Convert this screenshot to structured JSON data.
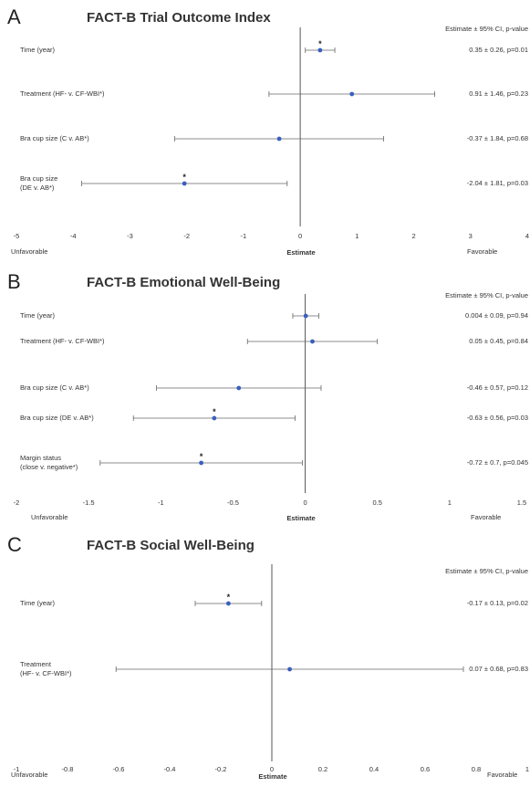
{
  "colors": {
    "line": "#555555",
    "ci": "#666666",
    "point": "#3a5fbf",
    "text": "#333333"
  },
  "chart_data": [
    {
      "type": "forest",
      "panel_letter": "A",
      "title": "FACT-B Trial Outcome Index",
      "column_header": "Estimate ± 95% CI, p-value",
      "xlabel": "Estimate",
      "left_label": "Unfavorable",
      "right_label": "Favorable",
      "xlim": [
        -5,
        4
      ],
      "ticks": [
        "-5",
        "-4",
        "-3",
        "-2",
        "-1",
        "0",
        "1",
        "2",
        "3",
        "4"
      ],
      "tick_values": [
        -5,
        -4,
        -3,
        -2,
        -1,
        0,
        1,
        2,
        3,
        4
      ],
      "rows": [
        {
          "label": [
            "Time (year)"
          ],
          "estimate": 0.35,
          "ci_low": 0.09,
          "ci_high": 0.61,
          "significant": true,
          "value_text": "0.35 ± 0.26, p=0.01"
        },
        {
          "label": [
            "Treatment (HF- v. CF-WBI*)"
          ],
          "estimate": 0.91,
          "ci_low": -0.55,
          "ci_high": 2.37,
          "significant": false,
          "value_text": "0.91 ± 1.46, p=0.23"
        },
        {
          "label": [
            "Bra cup size (C v. AB*)"
          ],
          "estimate": -0.37,
          "ci_low": -2.21,
          "ci_high": 1.47,
          "significant": false,
          "value_text": "-0.37 ± 1.84, p=0.68"
        },
        {
          "label": [
            "Bra cup size",
            "(DE v. AB*)"
          ],
          "estimate": -2.04,
          "ci_low": -3.85,
          "ci_high": -0.23,
          "significant": true,
          "value_text": "-2.04 ± 1.81, p=0.03"
        }
      ]
    },
    {
      "type": "forest",
      "panel_letter": "B",
      "title": "FACT-B Emotional Well-Being",
      "column_header": "Estimate ± 95% CI, p-value",
      "xlabel": "Estimate",
      "left_label": "Unfavorable",
      "right_label": "Favorable",
      "xlim": [
        -2,
        1.5
      ],
      "ticks": [
        "-2",
        "-1.5",
        "-1",
        "-0.5",
        "0",
        "0.5",
        "1",
        "1.5"
      ],
      "tick_values": [
        -2,
        -1.5,
        -1,
        -0.5,
        0,
        0.5,
        1,
        1.5
      ],
      "rows": [
        {
          "label": [
            "Time (year)"
          ],
          "estimate": 0.004,
          "ci_low": -0.086,
          "ci_high": 0.094,
          "significant": false,
          "value_text": "0.004 ± 0.09, p=0.94"
        },
        {
          "label": [
            "Treatment (HF- v. CF-WBI*)"
          ],
          "estimate": 0.05,
          "ci_low": -0.4,
          "ci_high": 0.5,
          "significant": false,
          "value_text": "0.05 ± 0.45, p=0.84"
        },
        {
          "label": [
            "Bra cup size (C v. AB*)"
          ],
          "estimate": -0.46,
          "ci_low": -1.03,
          "ci_high": 0.11,
          "significant": false,
          "value_text": "-0.46 ± 0.57, p=0.12"
        },
        {
          "label": [
            "Bra cup size (DE v. AB*)"
          ],
          "estimate": -0.63,
          "ci_low": -1.19,
          "ci_high": -0.07,
          "significant": true,
          "value_text": "-0.63 ± 0.56, p=0.03"
        },
        {
          "label": [
            "Margin status",
            "(close v. negative*)"
          ],
          "estimate": -0.72,
          "ci_low": -1.42,
          "ci_high": -0.02,
          "significant": true,
          "value_text": "-0.72 ± 0.7, p=0.045"
        }
      ]
    },
    {
      "type": "forest",
      "panel_letter": "C",
      "title": "FACT-B Social Well-Being",
      "column_header": "Estimate ± 95% CI, p-value",
      "xlabel": "Estimate",
      "left_label": "Unfavorable",
      "right_label": "Favorable",
      "xlim": [
        -1,
        1
      ],
      "ticks": [
        "-1",
        "-0.8",
        "-0.6",
        "-0.4",
        "-0.2",
        "0",
        "0.2",
        "0.4",
        "0.6",
        "0.8",
        "1"
      ],
      "tick_values": [
        -1,
        -0.8,
        -0.6,
        -0.4,
        -0.2,
        0,
        0.2,
        0.4,
        0.6,
        0.8,
        1
      ],
      "rows": [
        {
          "label": [
            "Time (year)"
          ],
          "estimate": -0.17,
          "ci_low": -0.3,
          "ci_high": -0.04,
          "significant": true,
          "value_text": "-0.17 ± 0.13, p=0.02"
        },
        {
          "label": [
            "Treatment",
            "(HF- v. CF-WBI*)"
          ],
          "estimate": 0.07,
          "ci_low": -0.61,
          "ci_high": 0.75,
          "significant": false,
          "value_text": "0.07 ± 0.68, p=0.83"
        }
      ]
    }
  ]
}
